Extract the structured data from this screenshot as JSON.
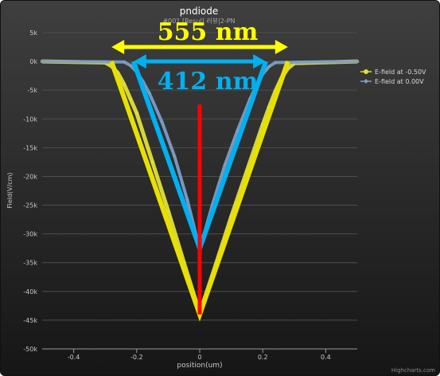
{
  "chart_data": {
    "type": "line",
    "title": "pndiode",
    "subtitle": "#001 [Resul] 러뷰|2-PN",
    "xlabel": "position(um)",
    "ylabel": "Field(V/cm)",
    "xlim": [
      -0.5,
      0.5
    ],
    "ylim": [
      -50000,
      5000
    ],
    "x_ticks": [
      -0.4,
      -0.2,
      0,
      0.2,
      0.4
    ],
    "x_tick_labels": [
      "-0.4",
      "-0.2",
      "0",
      "0.2",
      "0.4"
    ],
    "y_ticks": [
      5000,
      0,
      -5000,
      -10000,
      -15000,
      -20000,
      -25000,
      -30000,
      -35000,
      -40000,
      -45000,
      -50000
    ],
    "y_tick_labels": [
      "5k",
      "0k",
      "-5k",
      "-10k",
      "-15k",
      "-20k",
      "-25k",
      "-30k",
      "-35k",
      "-40k",
      "-45k",
      "-50k"
    ],
    "grid": true,
    "legend_position": "top-right",
    "series": [
      {
        "name": "E-field at -0.50V",
        "color": "#e0df3a",
        "marker": "circle",
        "x": [
          -0.5,
          -0.3,
          -0.28,
          -0.26,
          -0.24,
          -0.22,
          -0.2,
          -0.15,
          -0.1,
          -0.05,
          0,
          0.05,
          0.1,
          0.15,
          0.2,
          0.22,
          0.24,
          0.26,
          0.28,
          0.3,
          0.5
        ],
        "y": [
          0,
          -200,
          -800,
          -2000,
          -4000,
          -6500,
          -9000,
          -17500,
          -26000,
          -35000,
          -43800,
          -35500,
          -27000,
          -19000,
          -11000,
          -8000,
          -5200,
          -2800,
          -1200,
          -300,
          0
        ]
      },
      {
        "name": "E-field at 0.00V",
        "color": "#7d9dc4",
        "marker": "diamond",
        "x": [
          -0.5,
          -0.24,
          -0.22,
          -0.2,
          -0.18,
          -0.16,
          -0.12,
          -0.08,
          -0.04,
          0,
          0.04,
          0.08,
          0.12,
          0.16,
          0.18,
          0.2,
          0.22,
          0.24,
          0.5
        ],
        "y": [
          0,
          -100,
          -700,
          -1800,
          -3500,
          -5500,
          -10500,
          -16500,
          -24000,
          -32700,
          -25000,
          -18000,
          -12000,
          -6500,
          -4200,
          -2200,
          -900,
          -200,
          0
        ]
      }
    ],
    "annotations": [
      {
        "text": "555 nm",
        "color": "#ffff00",
        "x_from": -0.28,
        "x_to": 0.28,
        "y": 2500
      },
      {
        "text": "412 nm",
        "color": "#00b0f0",
        "x_from": -0.21,
        "x_to": 0.21,
        "y": 0
      }
    ],
    "overlay_lines": [
      {
        "name": "yellow-triangle",
        "color": "#e8e000",
        "points": [
          [
            -0.28,
            0
          ],
          [
            0,
            -44000
          ],
          [
            0.28,
            0
          ]
        ]
      },
      {
        "name": "blue-triangle",
        "color": "#00b0f0",
        "points": [
          [
            -0.21,
            0
          ],
          [
            0,
            -32500
          ],
          [
            0.21,
            0
          ]
        ]
      },
      {
        "name": "red-depth-line",
        "color": "#ff0000",
        "points": [
          [
            0,
            -7500
          ],
          [
            0,
            -44000
          ]
        ]
      }
    ],
    "credits": "Highcharts.com"
  }
}
